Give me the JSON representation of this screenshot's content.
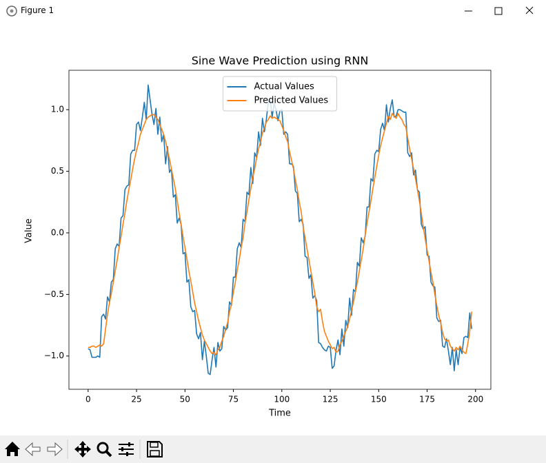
{
  "window": {
    "title": "Figure 1"
  },
  "chart_data": {
    "type": "line",
    "title": "Sine Wave Prediction using RNN",
    "x_label": "Time",
    "y_label": "Value",
    "legend": "upper center",
    "xlim": [
      -9.9,
      207.9
    ],
    "ylim": [
      -1.27,
      1.32
    ],
    "xticks": [
      0,
      25,
      50,
      75,
      100,
      125,
      150,
      175,
      200
    ],
    "yticks": [
      {
        "value": -1.0,
        "label": "−1.0"
      },
      {
        "value": -0.5,
        "label": "−0.5"
      },
      {
        "value": 0.0,
        "label": "0.0"
      },
      {
        "value": 0.5,
        "label": "0.5"
      },
      {
        "value": 1.0,
        "label": "1.0"
      }
    ],
    "x": [
      0,
      1,
      2,
      3,
      4,
      5,
      6,
      7,
      8,
      9,
      10,
      11,
      12,
      13,
      14,
      15,
      16,
      17,
      18,
      19,
      20,
      21,
      22,
      23,
      24,
      25,
      26,
      27,
      28,
      29,
      30,
      31,
      32,
      33,
      34,
      35,
      36,
      37,
      38,
      39,
      40,
      41,
      42,
      43,
      44,
      45,
      46,
      47,
      48,
      49,
      50,
      51,
      52,
      53,
      54,
      55,
      56,
      57,
      58,
      59,
      60,
      61,
      62,
      63,
      64,
      65,
      66,
      67,
      68,
      69,
      70,
      71,
      72,
      73,
      74,
      75,
      76,
      77,
      78,
      79,
      80,
      81,
      82,
      83,
      84,
      85,
      86,
      87,
      88,
      89,
      90,
      91,
      92,
      93,
      94,
      95,
      96,
      97,
      98,
      99,
      100,
      101,
      102,
      103,
      104,
      105,
      106,
      107,
      108,
      109,
      110,
      111,
      112,
      113,
      114,
      115,
      116,
      117,
      118,
      119,
      120,
      121,
      122,
      123,
      124,
      125,
      126,
      127,
      128,
      129,
      130,
      131,
      132,
      133,
      134,
      135,
      136,
      137,
      138,
      139,
      140,
      141,
      142,
      143,
      144,
      145,
      146,
      147,
      148,
      149,
      150,
      151,
      152,
      153,
      154,
      155,
      156,
      157,
      158,
      159,
      160,
      161,
      162,
      163,
      164,
      165,
      166,
      167,
      168,
      169,
      170,
      171,
      172,
      173,
      174,
      175,
      176,
      177,
      178,
      179,
      180,
      181,
      182,
      183,
      184,
      185,
      186,
      187,
      188,
      189,
      190,
      191,
      192,
      193,
      194,
      195,
      196,
      197,
      198
    ],
    "series": [
      {
        "name": "Actual Values",
        "color": "#1f77b4",
        "values": [
          -0.94,
          -0.95,
          -1.01,
          -1.01,
          -1.01,
          -1.0,
          -1.01,
          -0.68,
          -0.66,
          -0.7,
          -0.52,
          -0.56,
          -0.4,
          -0.38,
          -0.13,
          -0.09,
          -0.11,
          0.12,
          0.14,
          0.35,
          0.38,
          0.39,
          0.64,
          0.67,
          0.67,
          0.88,
          0.9,
          0.83,
          0.94,
          1.06,
          0.92,
          1.2,
          1.08,
          0.96,
          0.88,
          1.01,
          0.8,
          0.94,
          0.74,
          0.8,
          0.56,
          0.7,
          0.49,
          0.52,
          0.29,
          0.31,
          0.08,
          0.12,
          0.07,
          -0.17,
          -0.16,
          -0.4,
          -0.38,
          -0.6,
          -0.64,
          -0.63,
          -0.82,
          -0.86,
          -0.81,
          -1.03,
          -0.88,
          -1.0,
          -1.14,
          -1.15,
          -1.03,
          -0.93,
          -1.09,
          -0.89,
          -0.96,
          -0.94,
          -0.76,
          -0.79,
          -0.77,
          -0.56,
          -0.59,
          -0.36,
          -0.36,
          -0.13,
          -0.08,
          -0.12,
          0.11,
          0.09,
          0.33,
          0.31,
          0.53,
          0.4,
          0.65,
          0.61,
          0.82,
          0.71,
          0.93,
          0.82,
          0.92,
          1.06,
          1.08,
          0.94,
          1.05,
          1.0,
          0.91,
          0.99,
          1.0,
          0.8,
          0.82,
          0.8,
          0.56,
          0.56,
          0.54,
          0.34,
          0.32,
          0.09,
          0.11,
          0.07,
          -0.19,
          -0.2,
          -0.37,
          -0.34,
          -0.53,
          -0.51,
          -0.55,
          -0.89,
          -0.9,
          -0.93,
          -0.95,
          -0.96,
          -0.92,
          -0.93,
          -1.1,
          -1.08,
          -0.95,
          -0.87,
          -0.99,
          -0.78,
          -0.92,
          -0.71,
          -0.77,
          -0.53,
          -0.67,
          -0.46,
          -0.48,
          -0.24,
          -0.27,
          -0.04,
          -0.08,
          -0.03,
          0.21,
          0.21,
          0.44,
          0.42,
          0.64,
          0.67,
          0.66,
          0.84,
          0.89,
          0.83,
          1.04,
          0.9,
          1.01,
          1.08,
          0.94,
          0.95,
          1.0,
          1.0,
          0.99,
          0.98,
          0.98,
          0.65,
          0.62,
          0.65,
          0.47,
          0.51,
          0.35,
          0.33,
          0.07,
          0.03,
          0.05,
          -0.18,
          -0.19,
          -0.4,
          -0.43,
          -0.44,
          -0.69,
          -0.72,
          -0.71,
          -0.92,
          -0.93,
          -0.86,
          -0.96,
          -1.07,
          -0.93,
          -1.12,
          -0.95,
          -1.07,
          -0.93,
          -0.98,
          -0.85,
          -0.84,
          -0.85,
          -0.65,
          -0.78
        ]
      },
      {
        "name": "Predicted Values",
        "color": "#ff7f0e",
        "values": [
          -0.93,
          -0.93,
          -0.92,
          -0.92,
          -0.93,
          -0.92,
          -0.91,
          -0.92,
          -0.9,
          -0.78,
          -0.66,
          -0.57,
          -0.49,
          -0.4,
          -0.31,
          -0.22,
          -0.12,
          -0.03,
          0.07,
          0.16,
          0.26,
          0.35,
          0.43,
          0.52,
          0.6,
          0.67,
          0.73,
          0.8,
          0.84,
          0.88,
          0.92,
          0.94,
          0.95,
          0.96,
          0.96,
          0.94,
          0.92,
          0.88,
          0.84,
          0.8,
          0.74,
          0.67,
          0.6,
          0.52,
          0.44,
          0.36,
          0.26,
          0.16,
          0.07,
          -0.03,
          -0.12,
          -0.21,
          -0.31,
          -0.39,
          -0.48,
          -0.57,
          -0.64,
          -0.71,
          -0.77,
          -0.83,
          -0.87,
          -0.9,
          -0.93,
          -0.96,
          -0.98,
          -0.97,
          -0.99,
          -0.95,
          -0.93,
          -0.88,
          -0.84,
          -0.78,
          -0.73,
          -0.64,
          -0.58,
          -0.48,
          -0.4,
          -0.3,
          -0.22,
          -0.12,
          -0.04,
          0.08,
          0.17,
          0.27,
          0.36,
          0.45,
          0.52,
          0.61,
          0.68,
          0.74,
          0.81,
          0.85,
          0.9,
          0.92,
          0.95,
          0.93,
          0.94,
          0.93,
          0.92,
          0.91,
          0.87,
          0.83,
          0.78,
          0.74,
          0.66,
          0.59,
          0.52,
          0.43,
          0.35,
          0.25,
          0.17,
          0.05,
          -0.04,
          -0.13,
          -0.22,
          -0.31,
          -0.4,
          -0.49,
          -0.6,
          -0.64,
          -0.62,
          -0.72,
          -0.8,
          -0.84,
          -0.88,
          -0.91,
          -0.94,
          -0.93,
          -0.97,
          -0.96,
          -0.91,
          -0.88,
          -0.84,
          -0.8,
          -0.76,
          -0.7,
          -0.63,
          -0.56,
          -0.48,
          -0.4,
          -0.31,
          -0.22,
          -0.13,
          -0.02,
          0.08,
          0.17,
          0.26,
          0.36,
          0.45,
          0.54,
          0.63,
          0.71,
          0.77,
          0.83,
          0.89,
          0.95,
          0.92,
          0.97,
          0.95,
          0.93,
          0.97,
          0.94,
          0.92,
          0.88,
          0.86,
          0.77,
          0.68,
          0.6,
          0.52,
          0.44,
          0.35,
          0.26,
          0.16,
          0.05,
          -0.05,
          -0.14,
          -0.23,
          -0.32,
          -0.4,
          -0.5,
          -0.59,
          -0.67,
          -0.73,
          -0.81,
          -0.86,
          -0.88,
          -0.87,
          -0.92,
          -0.94,
          -0.96,
          -0.93,
          -0.95,
          -0.92,
          -0.95,
          -0.97,
          -0.98,
          -0.9,
          -0.8,
          -0.64
        ]
      }
    ]
  }
}
